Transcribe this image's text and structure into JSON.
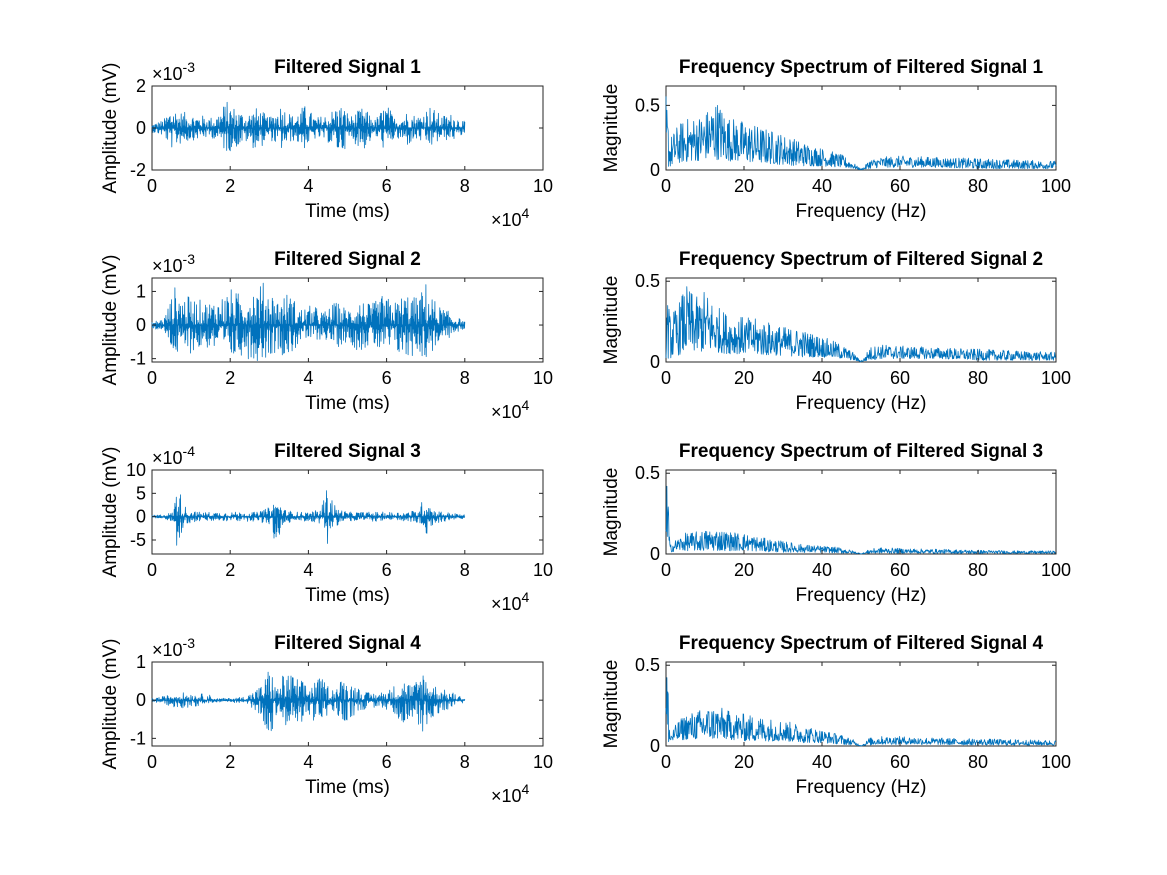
{
  "figure": {
    "background": "#ffffff",
    "axis_color": "#262626",
    "line_color": "#0072bd"
  },
  "chart_data": [
    {
      "type": "line",
      "title": "Filtered Signal 1",
      "xlabel": "Time (ms)",
      "ylabel": "Amplitude (mV)",
      "xlim": [
        0,
        100000
      ],
      "ylim": [
        -0.002,
        0.002
      ],
      "xticks": [
        0,
        2,
        4,
        6,
        8,
        10
      ],
      "yticks": [
        -2,
        0,
        2
      ],
      "x_exponent": "×10",
      "x_exponent_power": "4",
      "y_exponent": "×10",
      "y_exponent_power": "-3",
      "grid": false,
      "series": [
        {
          "color": "#0072bd",
          "envelope": {
            "x": [
              0,
              3000,
              5000,
              7000,
              10000,
              13000,
              16000,
              19000,
              22000,
              24000,
              27000,
              30000,
              33000,
              36000,
              39000,
              42000,
              45000,
              48000,
              51000,
              54000,
              57000,
              60000,
              62000,
              65000,
              68000,
              71000,
              74000,
              77000,
              80000
            ],
            "upper": [
              0.0002,
              0.0004,
              0.0011,
              0.0008,
              0.0007,
              0.0006,
              0.0005,
              0.0013,
              0.0009,
              0.0007,
              0.001,
              0.0005,
              0.0012,
              0.0006,
              0.0011,
              0.0005,
              0.0007,
              0.0012,
              0.0006,
              0.001,
              0.0004,
              0.0012,
              0.0005,
              0.0008,
              0.0006,
              0.0011,
              0.0006,
              0.0007,
              0.0003
            ],
            "lower": [
              -0.0002,
              -0.0004,
              -0.001,
              -0.0008,
              -0.0006,
              -0.0005,
              -0.0005,
              -0.0012,
              -0.0009,
              -0.0007,
              -0.0011,
              -0.0005,
              -0.0011,
              -0.0006,
              -0.001,
              -0.0005,
              -0.0007,
              -0.0013,
              -0.0006,
              -0.0011,
              -0.0004,
              -0.0012,
              -0.0005,
              -0.0009,
              -0.0006,
              -0.001,
              -0.0006,
              -0.0006,
              -0.0003
            ]
          }
        }
      ]
    },
    {
      "type": "line",
      "title": "Frequency Spectrum of Filtered Signal 1",
      "xlabel": "Frequency (Hz)",
      "ylabel": "Magnitude",
      "xlim": [
        0,
        100
      ],
      "ylim": [
        0,
        0.65
      ],
      "xticks": [
        0,
        20,
        40,
        60,
        80,
        100
      ],
      "yticks": [
        0,
        0.5
      ],
      "grid": false,
      "series": [
        {
          "color": "#0072bd",
          "envelope": {
            "x": [
              0,
              1,
              3,
              5,
              8,
              10,
              13,
              16,
              20,
              25,
              30,
              35,
              40,
              45,
              48,
              49,
              50,
              51,
              52,
              55,
              60,
              70,
              80,
              90,
              100
            ],
            "upper": [
              0.6,
              0.25,
              0.35,
              0.4,
              0.42,
              0.45,
              0.55,
              0.42,
              0.38,
              0.33,
              0.28,
              0.22,
              0.17,
              0.12,
              0.06,
              0.03,
              0.01,
              0.03,
              0.08,
              0.1,
              0.11,
              0.1,
              0.09,
              0.08,
              0.07
            ],
            "lower": [
              0.02,
              0.02,
              0.05,
              0.06,
              0.07,
              0.08,
              0.08,
              0.07,
              0.06,
              0.05,
              0.04,
              0.03,
              0.03,
              0.02,
              0.01,
              0.005,
              0.0,
              0.005,
              0.01,
              0.02,
              0.02,
              0.02,
              0.01,
              0.01,
              0.01
            ]
          }
        }
      ]
    },
    {
      "type": "line",
      "title": "Filtered Signal 2",
      "xlabel": "Time (ms)",
      "ylabel": "Amplitude (mV)",
      "xlim": [
        0,
        100000
      ],
      "ylim": [
        -0.0011,
        0.0014
      ],
      "xticks": [
        0,
        2,
        4,
        6,
        8,
        10
      ],
      "yticks": [
        -1,
        0,
        1
      ],
      "x_exponent": "×10",
      "x_exponent_power": "4",
      "y_exponent": "×10",
      "y_exponent_power": "-3",
      "grid": false,
      "series": [
        {
          "color": "#0072bd",
          "envelope": {
            "x": [
              0,
              3000,
              6000,
              8000,
              11000,
              14000,
              17000,
              20000,
              23000,
              26000,
              29000,
              32000,
              35000,
              38000,
              41000,
              44000,
              47000,
              50000,
              53000,
              56000,
              59000,
              62000,
              65000,
              68000,
              70000,
              73000,
              76000,
              80000
            ],
            "upper": [
              0.0001,
              0.0002,
              0.0012,
              0.0009,
              0.0008,
              0.0007,
              0.0008,
              0.0011,
              0.0009,
              0.0012,
              0.0013,
              0.0008,
              0.001,
              0.0005,
              0.0006,
              0.0004,
              0.0007,
              0.0005,
              0.0008,
              0.0006,
              0.0009,
              0.0007,
              0.001,
              0.0008,
              0.0013,
              0.0006,
              0.0004,
              0.0001
            ],
            "lower": [
              -0.0001,
              -0.0002,
              -0.001,
              -0.0009,
              -0.0008,
              -0.0007,
              -0.0008,
              -0.0011,
              -0.0009,
              -0.0011,
              -0.001,
              -0.0008,
              -0.001,
              -0.0005,
              -0.0005,
              -0.0004,
              -0.0007,
              -0.0005,
              -0.0008,
              -0.0006,
              -0.0009,
              -0.0008,
              -0.0011,
              -0.0008,
              -0.0011,
              -0.0006,
              -0.0004,
              -0.0001
            ]
          }
        }
      ]
    },
    {
      "type": "line",
      "title": "Frequency Spectrum of Filtered Signal 2",
      "xlabel": "Frequency (Hz)",
      "ylabel": "Magnitude",
      "xlim": [
        0,
        100
      ],
      "ylim": [
        0,
        0.52
      ],
      "xticks": [
        0,
        20,
        40,
        60,
        80,
        100
      ],
      "yticks": [
        0,
        0.5
      ],
      "grid": false,
      "series": [
        {
          "color": "#0072bd",
          "envelope": {
            "x": [
              0,
              1,
              3,
              5,
              8,
              10,
              13,
              16,
              20,
              25,
              30,
              35,
              40,
              45,
              48,
              49,
              50,
              51,
              52,
              55,
              60,
              70,
              80,
              90,
              100
            ],
            "upper": [
              0.5,
              0.3,
              0.35,
              0.48,
              0.4,
              0.45,
              0.35,
              0.3,
              0.28,
              0.26,
              0.22,
              0.2,
              0.16,
              0.11,
              0.06,
              0.03,
              0.01,
              0.03,
              0.09,
              0.11,
              0.1,
              0.09,
              0.08,
              0.07,
              0.06
            ],
            "lower": [
              0.02,
              0.02,
              0.04,
              0.06,
              0.06,
              0.06,
              0.06,
              0.05,
              0.05,
              0.04,
              0.04,
              0.03,
              0.03,
              0.02,
              0.01,
              0.005,
              0.0,
              0.005,
              0.01,
              0.02,
              0.02,
              0.02,
              0.01,
              0.01,
              0.01
            ]
          }
        }
      ]
    },
    {
      "type": "line",
      "title": "Filtered Signal 3",
      "xlabel": "Time (ms)",
      "ylabel": "Amplitude (mV)",
      "xlim": [
        0,
        100000
      ],
      "ylim": [
        -0.0008,
        0.001
      ],
      "xticks": [
        0,
        2,
        4,
        6,
        8,
        10
      ],
      "yticks": [
        -5,
        0,
        5,
        10
      ],
      "x_exponent": "×10",
      "x_exponent_power": "4",
      "y_exponent": "×10",
      "y_exponent_power": "-4",
      "grid": false,
      "series": [
        {
          "color": "#0072bd",
          "envelope": {
            "x": [
              0,
              3000,
              5500,
              6500,
              7500,
              9000,
              12000,
              15000,
              18000,
              21000,
              24000,
              27000,
              30000,
              32000,
              34000,
              37000,
              40000,
              43000,
              45000,
              47000,
              50000,
              53000,
              56000,
              59000,
              62000,
              65000,
              68000,
              70000,
              72000,
              75000,
              80000
            ],
            "upper": [
              3e-05,
              5e-05,
              0.0001,
              0.0009,
              0.0004,
              0.00015,
              0.0001,
              0.0001,
              0.0001,
              0.0001,
              0.0001,
              0.0001,
              0.0002,
              0.0004,
              0.00015,
              0.0001,
              0.0001,
              0.00015,
              0.0007,
              0.0002,
              0.0001,
              0.0001,
              0.0001,
              0.0001,
              0.0001,
              0.0001,
              0.00015,
              0.0005,
              0.00015,
              0.0001,
              4e-05
            ],
            "lower": [
              -3e-05,
              -5e-05,
              -0.0001,
              -0.0008,
              -0.0004,
              -0.00015,
              -0.0001,
              -0.0001,
              -0.0001,
              -0.0001,
              -0.0001,
              -0.0001,
              -0.0002,
              -0.0007,
              -0.00015,
              -0.0001,
              -0.0001,
              -0.00015,
              -0.0006,
              -0.0002,
              -0.0001,
              -0.0001,
              -0.0001,
              -0.0001,
              -0.0001,
              -0.0001,
              -0.00015,
              -0.0005,
              -0.00015,
              -0.0001,
              -4e-05
            ]
          }
        }
      ]
    },
    {
      "type": "line",
      "title": "Frequency Spectrum of Filtered Signal 3",
      "xlabel": "Frequency (Hz)",
      "ylabel": "Magnitude",
      "xlim": [
        0,
        100
      ],
      "ylim": [
        0,
        0.52
      ],
      "xticks": [
        0,
        20,
        40,
        60,
        80,
        100
      ],
      "yticks": [
        0,
        0.5
      ],
      "grid": false,
      "series": [
        {
          "color": "#0072bd",
          "envelope": {
            "x": [
              0,
              0.5,
              1,
              3,
              5,
              8,
              10,
              13,
              16,
              20,
              25,
              30,
              35,
              40,
              45,
              48,
              49,
              50,
              51,
              52,
              55,
              60,
              70,
              80,
              90,
              100
            ],
            "upper": [
              0.5,
              0.45,
              0.06,
              0.1,
              0.13,
              0.14,
              0.15,
              0.16,
              0.14,
              0.13,
              0.1,
              0.08,
              0.06,
              0.05,
              0.04,
              0.02,
              0.01,
              0.005,
              0.01,
              0.03,
              0.04,
              0.035,
              0.03,
              0.025,
              0.02,
              0.02
            ],
            "lower": [
              0.01,
              0.01,
              0.01,
              0.02,
              0.02,
              0.02,
              0.02,
              0.02,
              0.02,
              0.02,
              0.015,
              0.01,
              0.01,
              0.01,
              0.005,
              0.003,
              0.002,
              0.0,
              0.002,
              0.003,
              0.005,
              0.005,
              0.004,
              0.003,
              0.003,
              0.003
            ]
          }
        }
      ]
    },
    {
      "type": "line",
      "title": "Filtered Signal 4",
      "xlabel": "Time (ms)",
      "ylabel": "Amplitude (mV)",
      "xlim": [
        0,
        100000
      ],
      "ylim": [
        -0.0012,
        0.001
      ],
      "xticks": [
        0,
        2,
        4,
        6,
        8,
        10
      ],
      "yticks": [
        -1,
        0,
        1
      ],
      "x_exponent": "×10",
      "x_exponent_power": "4",
      "y_exponent": "×10",
      "y_exponent_power": "-3",
      "grid": false,
      "series": [
        {
          "color": "#0072bd",
          "envelope": {
            "x": [
              0,
              3000,
              6000,
              9000,
              12000,
              14000,
              16000,
              20000,
              24000,
              28000,
              30000,
              32000,
              34000,
              37000,
              40000,
              43000,
              46000,
              49000,
              52000,
              55000,
              58000,
              61000,
              64000,
              67000,
              69000,
              71000,
              74000,
              77000,
              80000
            ],
            "upper": [
              5e-05,
              0.0001,
              0.0002,
              0.0002,
              0.00015,
              0.0002,
              5e-05,
              5e-05,
              0.0001,
              0.0004,
              0.0009,
              0.0003,
              0.0008,
              0.0006,
              0.0004,
              0.0006,
              0.0003,
              0.0006,
              0.0004,
              0.0002,
              0.0002,
              0.0003,
              0.0006,
              0.0004,
              0.0009,
              0.0005,
              0.0003,
              0.0002,
              5e-05
            ],
            "lower": [
              -5e-05,
              -0.0001,
              -0.0002,
              -0.0002,
              -0.00015,
              -0.0001,
              -5e-05,
              -5e-05,
              -0.0001,
              -0.0004,
              -0.0011,
              -0.0003,
              -0.0008,
              -0.0007,
              -0.0004,
              -0.0007,
              -0.0003,
              -0.0006,
              -0.0004,
              -0.0002,
              -0.0002,
              -0.0003,
              -0.0006,
              -0.0004,
              -0.0009,
              -0.0005,
              -0.0003,
              -0.0002,
              -5e-05
            ]
          }
        }
      ]
    },
    {
      "type": "line",
      "title": "Frequency Spectrum of Filtered Signal 4",
      "xlabel": "Frequency (Hz)",
      "ylabel": "Magnitude",
      "xlim": [
        0,
        100
      ],
      "ylim": [
        0,
        0.52
      ],
      "xticks": [
        0,
        20,
        40,
        60,
        80,
        100
      ],
      "yticks": [
        0,
        0.5
      ],
      "grid": false,
      "series": [
        {
          "color": "#0072bd",
          "envelope": {
            "x": [
              0,
              0.5,
              1,
              3,
              5,
              8,
              10,
              13,
              16,
              20,
              25,
              30,
              35,
              40,
              45,
              48,
              49,
              50,
              51,
              52,
              55,
              60,
              70,
              80,
              90,
              100
            ],
            "upper": [
              0.5,
              0.45,
              0.08,
              0.15,
              0.2,
              0.22,
              0.24,
              0.25,
              0.22,
              0.2,
              0.18,
              0.16,
              0.13,
              0.1,
              0.07,
              0.04,
              0.02,
              0.005,
              0.02,
              0.05,
              0.06,
              0.06,
              0.05,
              0.045,
              0.04,
              0.035
            ],
            "lower": [
              0.01,
              0.01,
              0.02,
              0.03,
              0.04,
              0.04,
              0.04,
              0.04,
              0.04,
              0.03,
              0.03,
              0.03,
              0.02,
              0.02,
              0.01,
              0.005,
              0.003,
              0.0,
              0.003,
              0.005,
              0.01,
              0.01,
              0.008,
              0.006,
              0.005,
              0.005
            ]
          }
        }
      ]
    }
  ]
}
